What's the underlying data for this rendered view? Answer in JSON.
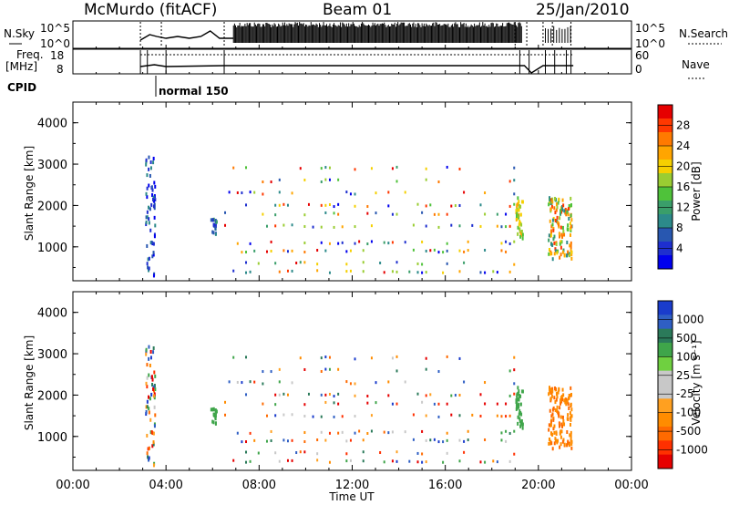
{
  "header": {
    "site": "McMurdo (fitACF)",
    "beam": "Beam 01",
    "date": "25/Jan/2010"
  },
  "top_panels": {
    "nsky_label": "N.Sky",
    "nsky_ticks": [
      "10^5",
      "10^0"
    ],
    "nsearch_label": "N.Search",
    "nsearch_ticks": [
      "10^5",
      "10^0"
    ],
    "freq_label_line1": "Freq.",
    "freq_label_line2": "[MHz]",
    "freq_ticks": [
      "18",
      "8"
    ],
    "nave_label": "Nave",
    "nave_ticks": [
      "60",
      "0"
    ],
    "cpid_label": "CPID",
    "cpid_name": "normal 150"
  },
  "chart_data": [
    {
      "type": "heatmap",
      "panel": "power",
      "xlabel": "",
      "ylabel": "Slant Range [km]",
      "xlim_hours": [
        0,
        24
      ],
      "ylim_km": [
        180,
        4500
      ],
      "y_ticks": [
        "1000",
        "2000",
        "3000",
        "4000"
      ],
      "colorbar": {
        "label": "Power [dB]",
        "ticks": [
          "28",
          "24",
          "20",
          "16",
          "12",
          "8",
          "4"
        ],
        "colors": [
          "#e60000",
          "#ff3800",
          "#ff7a00",
          "#ffa500",
          "#f5d000",
          "#9acd32",
          "#4fc23a",
          "#3a9e6a",
          "#2c8a8a",
          "#2857b0",
          "#1e2fcf",
          "#0000ee"
        ]
      },
      "grid": false
    },
    {
      "type": "heatmap",
      "panel": "velocity",
      "xlabel": "Time UT",
      "ylabel": "Slant Range [km]",
      "xlim_hours": [
        0,
        24
      ],
      "ylim_km": [
        180,
        4500
      ],
      "x_ticks": [
        "00:00",
        "04:00",
        "08:00",
        "12:00",
        "16:00",
        "20:00",
        "00:00"
      ],
      "y_ticks": [
        "1000",
        "2000",
        "3000",
        "4000"
      ],
      "colorbar": {
        "label": "Velocity [m s⁻¹]",
        "ticks": [
          "1000",
          "500",
          "100",
          "25",
          "-25",
          "-100",
          "-500",
          "-1000"
        ],
        "colors": [
          "#1a3ccc",
          "#2f5fc4",
          "#2b7a5a",
          "#3fa54a",
          "#6fd040",
          "#c8c8c8",
          "#c8c8c8",
          "#ffa020",
          "#ff8c00",
          "#ff6a00",
          "#ff3000",
          "#e60000"
        ]
      },
      "grid": false
    }
  ]
}
